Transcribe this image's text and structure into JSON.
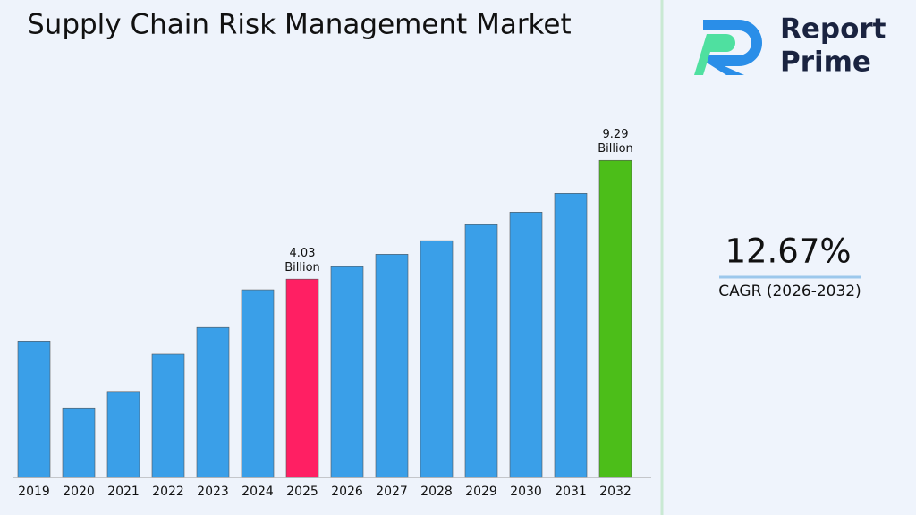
{
  "chart_data": {
    "type": "bar",
    "title": "Supply Chain Risk Management Market",
    "categories": [
      "2019",
      "2020",
      "2021",
      "2022",
      "2023",
      "2024",
      "2025",
      "2026",
      "2027",
      "2028",
      "2029",
      "2030",
      "2031",
      "2032"
    ],
    "values": [
      2.61,
      1.63,
      1.83,
      2.38,
      2.87,
      3.74,
      4.03,
      4.4,
      4.8,
      5.28,
      5.91,
      6.45,
      7.36,
      9.29
    ],
    "value_labels": [
      null,
      null,
      null,
      null,
      null,
      null,
      "4.03 Billion",
      null,
      null,
      null,
      null,
      null,
      null,
      "9.29 Billion"
    ],
    "colors": [
      "#3a9fe8",
      "#3a9fe8",
      "#3a9fe8",
      "#3a9fe8",
      "#3a9fe8",
      "#3a9fe8",
      "#ff1f63",
      "#3a9fe8",
      "#3a9fe8",
      "#3a9fe8",
      "#3a9fe8",
      "#3a9fe8",
      "#3a9fe8",
      "#4cbe19"
    ],
    "ylim": [
      1,
      15
    ],
    "log_scale": true,
    "grid": false
  },
  "brand": {
    "line1": "Report",
    "line2": "Prime"
  },
  "cagr": {
    "value": "12.67%",
    "label": "CAGR (2026-2032)"
  }
}
